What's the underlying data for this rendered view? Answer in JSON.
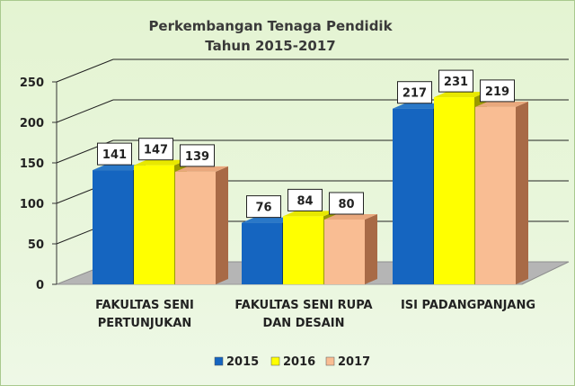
{
  "chart_data": {
    "type": "bar",
    "title": [
      "Perkembangan Tenaga Pendidik",
      "Tahun 2015-2017"
    ],
    "categories": [
      [
        "FAKULTAS SENI",
        "PERTUNJUKAN"
      ],
      [
        "FAKULTAS SENI RUPA",
        "DAN DESAIN"
      ],
      [
        "ISI PADANGPANJANG"
      ]
    ],
    "series": [
      {
        "name": "2015",
        "values": [
          141,
          76,
          217
        ],
        "color": "#1565c0",
        "side": "#0b3d73",
        "top": "#2a78c8"
      },
      {
        "name": "2016",
        "values": [
          147,
          84,
          231
        ],
        "color": "#ffff00",
        "side": "#9a9a00",
        "top": "#e8e800"
      },
      {
        "name": "2017",
        "values": [
          139,
          80,
          219
        ],
        "color": "#f9bd93",
        "side": "#a86a46",
        "top": "#e9a87d"
      }
    ],
    "y_ticks": [
      "0",
      "50",
      "100",
      "150",
      "200",
      "250"
    ],
    "ylim": [
      0,
      250
    ],
    "grid": true,
    "legend": "bottom"
  }
}
